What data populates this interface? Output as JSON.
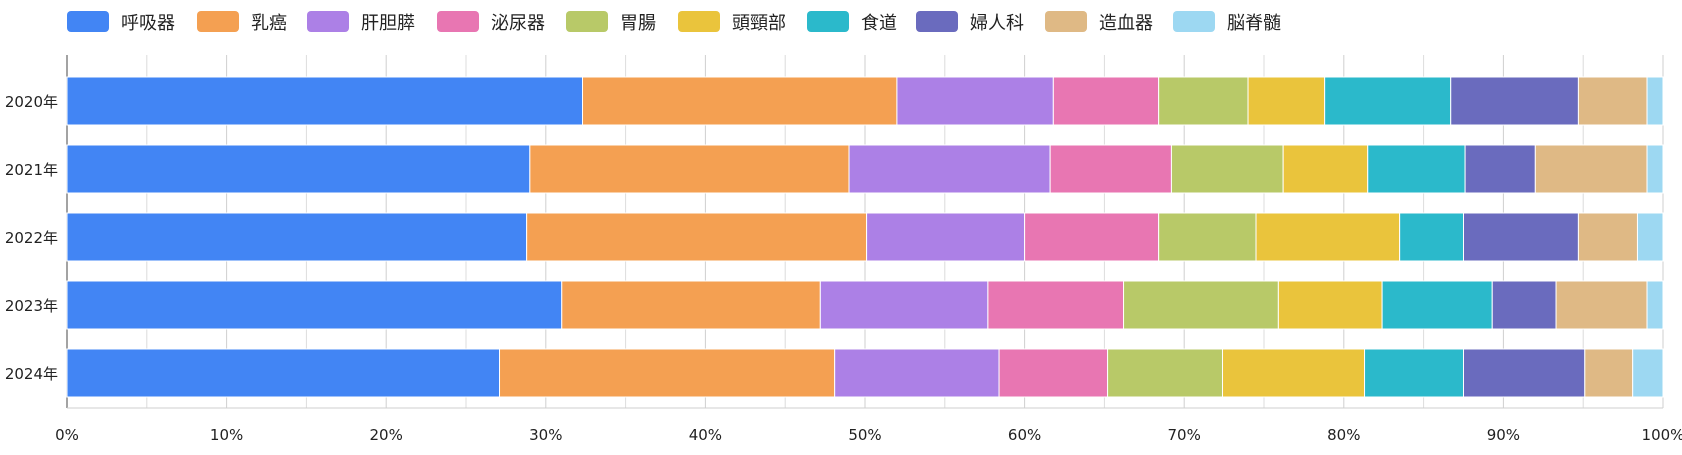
{
  "chart_data": {
    "type": "bar",
    "orientation": "horizontal",
    "stacked": true,
    "normalized_percent": true,
    "categories": [
      "2020年",
      "2021年",
      "2022年",
      "2023年",
      "2024年"
    ],
    "series": [
      {
        "name": "呼吸器",
        "color": "#4285F4",
        "values": [
          32.3,
          29.0,
          28.8,
          31.0,
          27.1
        ]
      },
      {
        "name": "乳癌",
        "color": "#F4A052",
        "values": [
          19.7,
          20.0,
          21.3,
          16.2,
          21.0
        ]
      },
      {
        "name": "肝胆膵",
        "color": "#AC80E6",
        "values": [
          9.8,
          12.6,
          9.9,
          10.5,
          10.3
        ]
      },
      {
        "name": "泌尿器",
        "color": "#E876B2",
        "values": [
          6.6,
          7.6,
          8.4,
          8.5,
          6.8
        ]
      },
      {
        "name": "胃腸",
        "color": "#B8C968",
        "values": [
          5.6,
          7.0,
          6.1,
          9.7,
          7.2
        ]
      },
      {
        "name": "頭頸部",
        "color": "#EAC43C",
        "values": [
          4.8,
          5.3,
          9.0,
          6.5,
          8.9
        ]
      },
      {
        "name": "食道",
        "color": "#2BB9CB",
        "values": [
          7.9,
          6.1,
          4.0,
          6.9,
          6.2
        ]
      },
      {
        "name": "婦人科",
        "color": "#6A6BBE",
        "values": [
          8.0,
          4.4,
          7.2,
          4.0,
          7.6
        ]
      },
      {
        "name": "造血器",
        "color": "#DFB985",
        "values": [
          4.3,
          7.0,
          3.7,
          5.7,
          3.0
        ]
      },
      {
        "name": "脳脊髄",
        "color": "#9DD8F2",
        "values": [
          1.0,
          1.0,
          1.6,
          1.0,
          1.9
        ]
      }
    ],
    "xlim": [
      0,
      100
    ],
    "xticks": [
      "0%",
      "10%",
      "20%",
      "30%",
      "40%",
      "50%",
      "60%",
      "70%",
      "80%",
      "90%",
      "100%"
    ],
    "grid": true,
    "legend_position": "top-left",
    "title": "",
    "xlabel": "",
    "ylabel": ""
  }
}
